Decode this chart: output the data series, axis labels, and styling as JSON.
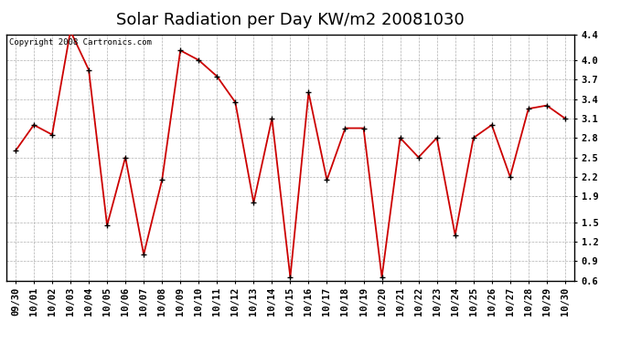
{
  "title": "Solar Radiation per Day KW/m2 20081030",
  "copyright_text": "Copyright 2008 Cartronics.com",
  "x_labels": [
    "09/30",
    "10/01",
    "10/02",
    "10/03",
    "10/04",
    "10/05",
    "10/06",
    "10/07",
    "10/08",
    "10/09",
    "10/10",
    "10/11",
    "10/12",
    "10/13",
    "10/14",
    "10/15",
    "10/16",
    "10/17",
    "10/18",
    "10/19",
    "10/20",
    "10/21",
    "10/22",
    "10/23",
    "10/24",
    "10/25",
    "10/26",
    "10/27",
    "10/28",
    "10/29",
    "10/30"
  ],
  "y_values": [
    2.6,
    3.0,
    2.85,
    4.45,
    3.85,
    1.45,
    2.5,
    1.0,
    2.15,
    4.15,
    4.0,
    3.75,
    3.35,
    1.8,
    3.1,
    0.65,
    3.5,
    2.15,
    2.95,
    2.95,
    0.65,
    2.8,
    2.5,
    2.8,
    1.3,
    2.8,
    3.0,
    2.2,
    3.25,
    3.3,
    3.1
  ],
  "line_color": "#cc0000",
  "marker_color": "#000000",
  "bg_color": "#ffffff",
  "grid_color": "#b0b0b0",
  "ylim": [
    0.6,
    4.4
  ],
  "yticks": [
    0.6,
    0.9,
    1.2,
    1.5,
    1.9,
    2.2,
    2.5,
    2.8,
    3.1,
    3.4,
    3.7,
    4.0,
    4.4
  ],
  "title_fontsize": 13,
  "tick_fontsize": 7.5,
  "copyright_fontsize": 6.5
}
